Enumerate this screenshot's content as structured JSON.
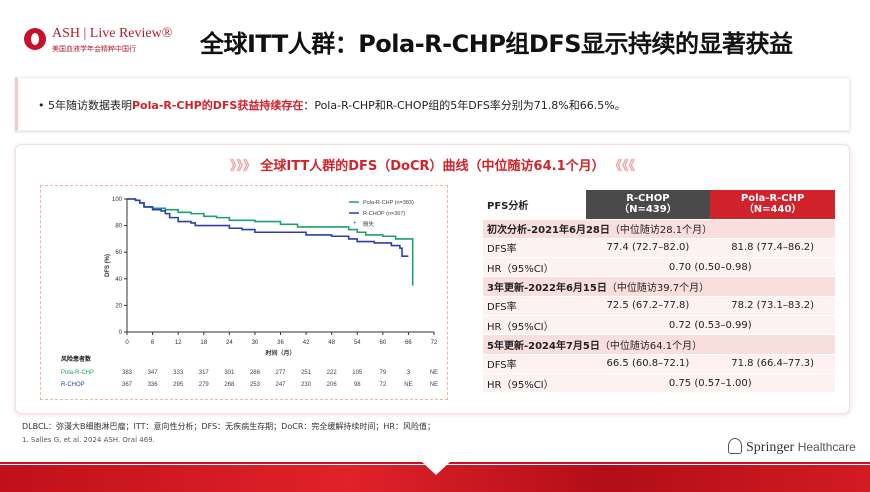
{
  "header": {
    "logo_text": "ASH | Live Review®",
    "logo_subtext": "美国血液学年会精粹中国行",
    "title": "全球ITT人群：Pola-R-CHP组DFS显示持续的显著获益"
  },
  "bullet": {
    "prefix": "5年随访数据表明",
    "highlight": "Pola-R-CHP的DFS获益持续存在",
    "suffix": "：Pola-R-CHP和R-CHOP组的5年DFS率分别为71.8%和66.5%。"
  },
  "panel": {
    "title": "全球ITT人群的DFS（DoCR）曲线（中位随访64.1个月）",
    "chevron_left": "》》》",
    "chevron_right": "《《《"
  },
  "colors": {
    "accent": "#d0232b",
    "pola": "#1f9e6e",
    "rchop": "#2b3fb0",
    "rchop_header": "#4a4a4a"
  },
  "chart_data": {
    "type": "line",
    "xlabel": "时间（月）",
    "ylabel": "DFS (%)",
    "xlim": [
      0,
      72
    ],
    "ylim": [
      0,
      100
    ],
    "xticks": [
      "0",
      "6",
      "12",
      "18",
      "24",
      "30",
      "36",
      "42",
      "48",
      "54",
      "60",
      "66",
      "72"
    ],
    "yticks": [
      "0",
      "20",
      "40",
      "60",
      "80",
      "100"
    ],
    "legend": {
      "placement": "top-right",
      "censor_label": "删失"
    },
    "series": [
      {
        "name": "Pola-R-CHP (n=383)",
        "color": "#1f9e6e",
        "x": [
          0,
          2,
          3,
          4,
          6,
          9,
          12,
          15,
          18,
          21,
          24,
          30,
          36,
          40,
          48,
          52,
          54,
          56,
          60,
          63,
          67,
          67
        ],
        "y": [
          100,
          99,
          97,
          94,
          93,
          92,
          90,
          89,
          87,
          86,
          84,
          83,
          81,
          79,
          79,
          77,
          75,
          73,
          72,
          70,
          70,
          35
        ]
      },
      {
        "name": "R-CHOP (n=367)",
        "color": "#2b3fb0",
        "x": [
          0,
          2,
          3,
          4,
          6,
          8,
          9,
          10,
          12,
          15,
          16,
          20,
          24,
          27,
          30,
          36,
          42,
          48,
          52,
          54,
          58,
          62,
          64,
          64.5,
          66
        ],
        "y": [
          100,
          99,
          97,
          94,
          92,
          91,
          89,
          86,
          83,
          82,
          80,
          80,
          78,
          77,
          75,
          75,
          73,
          72,
          70,
          68,
          67,
          65,
          63,
          57,
          57
        ]
      }
    ],
    "risk_table": {
      "title": "风险患者数",
      "rows": [
        {
          "name": "Pola-R-CHP",
          "values": [
            "383",
            "347",
            "333",
            "317",
            "301",
            "286",
            "277",
            "251",
            "222",
            "105",
            "79",
            "3",
            "NE"
          ]
        },
        {
          "name": "R-CHOP",
          "values": [
            "367",
            "336",
            "295",
            "279",
            "268",
            "253",
            "247",
            "230",
            "206",
            "98",
            "72",
            "NE",
            "NE"
          ]
        }
      ]
    }
  },
  "table": {
    "header": {
      "label": "PFS分析",
      "rchop": "R-CHOP",
      "rchop_n": "（N=439）",
      "pola": "Pola-R-CHP",
      "pola_n": "（N=440）"
    },
    "sections": [
      {
        "title": "初次分析-2021年6月28日",
        "sub": "（中位随访28.1个月）",
        "dfs_label": "DFS率",
        "dfs_rchop": "77.4 (72.7–82.0)",
        "dfs_pola": "81.8 (77.4–86.2)",
        "hr_label": "HR（95%CI）",
        "hr": "0.70 (0.50–0.98)"
      },
      {
        "title": "3年更新-2022年6月15日",
        "sub": "（中位随访39.7个月）",
        "dfs_label": "DFS率",
        "dfs_rchop": "72.5 (67.2–77.8)",
        "dfs_pola": "78.2 (73.1–83.2)",
        "hr_label": "HR（95%CI）",
        "hr": "0.72 (0.53–0.99)"
      },
      {
        "title": "5年更新-2024年7月5日",
        "sub": "（中位随访64.1个月）",
        "dfs_label": "DFS率",
        "dfs_rchop": "66.5 (60.8–72.1)",
        "dfs_pola": "71.8 (66.4–77.3)",
        "hr_label": "HR（95%CI）",
        "hr": "0.75 (0.57–1.00)"
      }
    ]
  },
  "footer": {
    "abbrev": "DLBCL：弥漫大B细胞淋巴瘤；ITT：意向性分析；DFS：无疾病生存期；DoCR：完全缓解持续时间；HR：风险值；",
    "reference": "1.  Salles G, et al. 2024 ASH. Oral 469.",
    "brand": "Springer",
    "brand2": "Healthcare"
  }
}
